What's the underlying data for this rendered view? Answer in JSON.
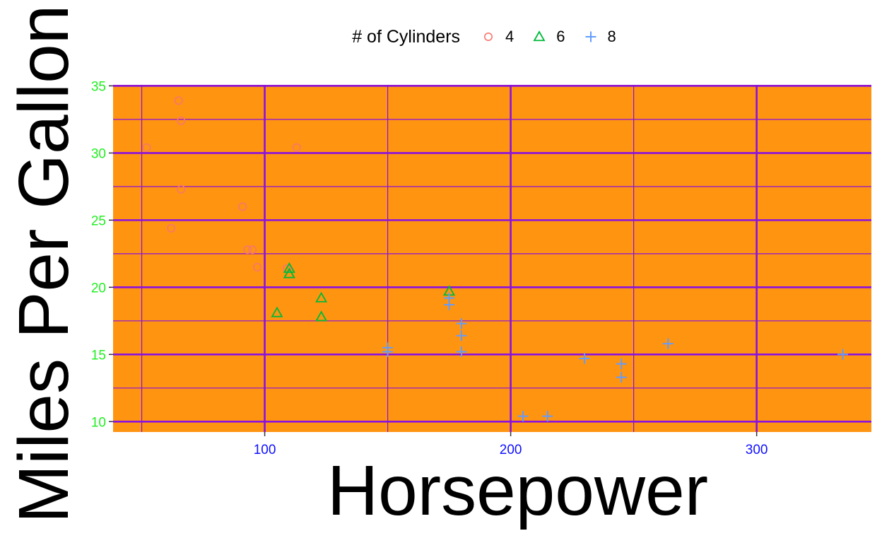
{
  "chart_data": {
    "type": "scatter",
    "title": "",
    "xlabel": "Horsepower",
    "ylabel": "Miles Per Gallon",
    "xlim": [
      38.35,
      346.65
    ],
    "ylim": [
      9.225,
      35.075
    ],
    "x_ticks": [
      100,
      200,
      300
    ],
    "y_ticks": [
      10,
      15,
      20,
      25,
      30,
      35
    ],
    "grid": true,
    "legend_title": "# of Cylinders",
    "legend_position": "top",
    "colors": {
      "panel_background": "#ff9410",
      "grid": "#8a10e0",
      "x_tick_labels": "#1010ff",
      "y_tick_labels": "#22ee22"
    },
    "series": [
      {
        "name": "4",
        "marker": "circle-open",
        "color": "#f8766d",
        "points": [
          [
            93,
            22.8
          ],
          [
            62,
            24.4
          ],
          [
            95,
            22.8
          ],
          [
            66,
            32.4
          ],
          [
            52,
            30.4
          ],
          [
            65,
            33.9
          ],
          [
            97,
            21.5
          ],
          [
            66,
            27.3
          ],
          [
            91,
            26.0
          ],
          [
            113,
            30.4
          ],
          [
            109,
            21.4
          ]
        ]
      },
      {
        "name": "6",
        "marker": "triangle-open",
        "color": "#00ba38",
        "points": [
          [
            110,
            21.0
          ],
          [
            110,
            21.0
          ],
          [
            110,
            21.4
          ],
          [
            105,
            18.1
          ],
          [
            123,
            19.2
          ],
          [
            123,
            17.8
          ],
          [
            175,
            19.7
          ]
        ]
      },
      {
        "name": "8",
        "marker": "plus",
        "color": "#619cff",
        "points": [
          [
            175,
            18.7
          ],
          [
            245,
            14.3
          ],
          [
            180,
            16.4
          ],
          [
            180,
            17.3
          ],
          [
            180,
            15.2
          ],
          [
            205,
            10.4
          ],
          [
            215,
            10.4
          ],
          [
            230,
            14.7
          ],
          [
            150,
            15.5
          ],
          [
            150,
            15.2
          ],
          [
            245,
            13.3
          ],
          [
            175,
            19.2
          ],
          [
            264,
            15.8
          ],
          [
            335,
            15.0
          ]
        ]
      }
    ]
  }
}
